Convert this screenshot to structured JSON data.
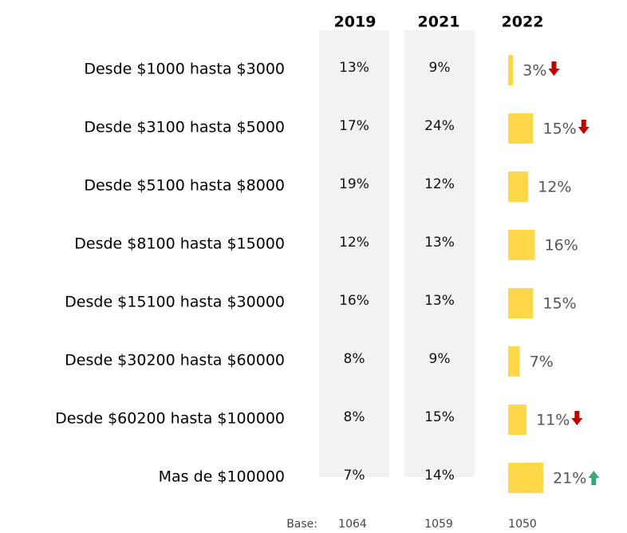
{
  "chart_data": {
    "type": "bar",
    "categories": [
      "Desde $1000 hasta $3000",
      "Desde $3100 hasta $5000",
      "Desde $5100 hasta $8000",
      "Desde $8100 hasta $15000",
      "Desde $15100 hasta $30000",
      "Desde $30200 hasta $60000",
      "Desde $60200 hasta $100000",
      "Mas de $100000"
    ],
    "series": [
      {
        "name": "2019",
        "values": [
          13,
          17,
          19,
          12,
          16,
          8,
          8,
          7
        ],
        "value_labels": [
          "13%",
          "17%",
          "19%",
          "12%",
          "16%",
          "8%",
          "8%",
          "7%"
        ]
      },
      {
        "name": "2021",
        "values": [
          9,
          24,
          12,
          13,
          13,
          9,
          15,
          14
        ],
        "value_labels": [
          "9%",
          "24%",
          "12%",
          "13%",
          "13%",
          "9%",
          "15%",
          "14%"
        ]
      },
      {
        "name": "2022",
        "color": "#ffd84a",
        "values": [
          3,
          15,
          12,
          16,
          15,
          7,
          11,
          21
        ],
        "value_labels": [
          "3%",
          "15%",
          "12%",
          "16%",
          "15%",
          "7%",
          "11%",
          "21%"
        ]
      }
    ],
    "indicators": [
      "down",
      "down",
      null,
      null,
      null,
      null,
      "down",
      "up"
    ],
    "indicator_colors": {
      "down": "#c00000",
      "up": "#3aa876"
    },
    "column_background": "#f2f2f2",
    "base": {
      "label": "Base:",
      "values": [
        1064,
        1059,
        1050
      ]
    }
  }
}
